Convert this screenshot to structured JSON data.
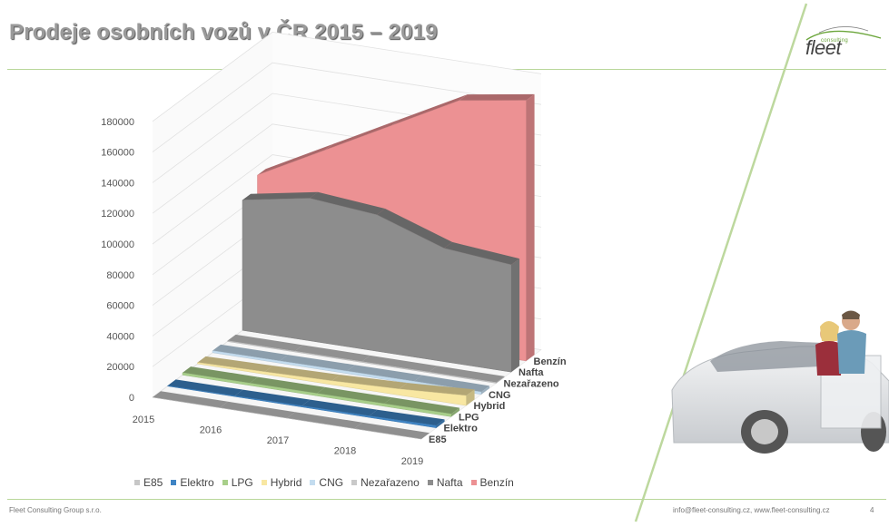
{
  "slide": {
    "title": "Prodeje osobních vozů v ČR 2015 – 2019",
    "footer_left": "Fleet Consulting Group s.r.o.",
    "footer_right": "info@fleet-consulting.cz, www.fleet-consulting.cz",
    "page_number": "4"
  },
  "logo": {
    "small": "consulting",
    "big": "fleet"
  },
  "colors": {
    "accent_line": "#b9d79a",
    "diagonal": "#bdd89e"
  },
  "chart_data": {
    "type": "area",
    "view": "3d",
    "categories": [
      "2015",
      "2016",
      "2017",
      "2018",
      "2019"
    ],
    "y_ticks": [
      "0",
      "20000",
      "40000",
      "60000",
      "80000",
      "100000",
      "120000",
      "140000",
      "160000",
      "180000"
    ],
    "ylim": [
      0,
      180000
    ],
    "legend_position": "bottom",
    "series": [
      {
        "name": "E85",
        "color": "#c7c7c7",
        "values": [
          0,
          0,
          0,
          0,
          0
        ]
      },
      {
        "name": "Elektro",
        "color": "#3f84c4",
        "values": [
          300,
          500,
          800,
          1000,
          1500
        ]
      },
      {
        "name": "LPG",
        "color": "#a8cf8a",
        "values": [
          1500,
          1500,
          1600,
          1700,
          1800
        ]
      },
      {
        "name": "Hybrid",
        "color": "#f8e7a2",
        "values": [
          900,
          1600,
          2500,
          4000,
          6500
        ]
      },
      {
        "name": "CNG",
        "color": "#c3dcef",
        "values": [
          1300,
          1400,
          1600,
          1700,
          1600
        ]
      },
      {
        "name": "Nezařazeno",
        "color": "#c9c9c9",
        "values": [
          500,
          500,
          500,
          500,
          500
        ]
      },
      {
        "name": "Nafta",
        "color": "#8d8d8d",
        "values": [
          85000,
          93000,
          89000,
          74000,
          70000
        ]
      },
      {
        "name": "Benzín",
        "color": "#ec9193",
        "values": [
          94000,
          117000,
          140000,
          163000,
          170000
        ]
      }
    ]
  }
}
